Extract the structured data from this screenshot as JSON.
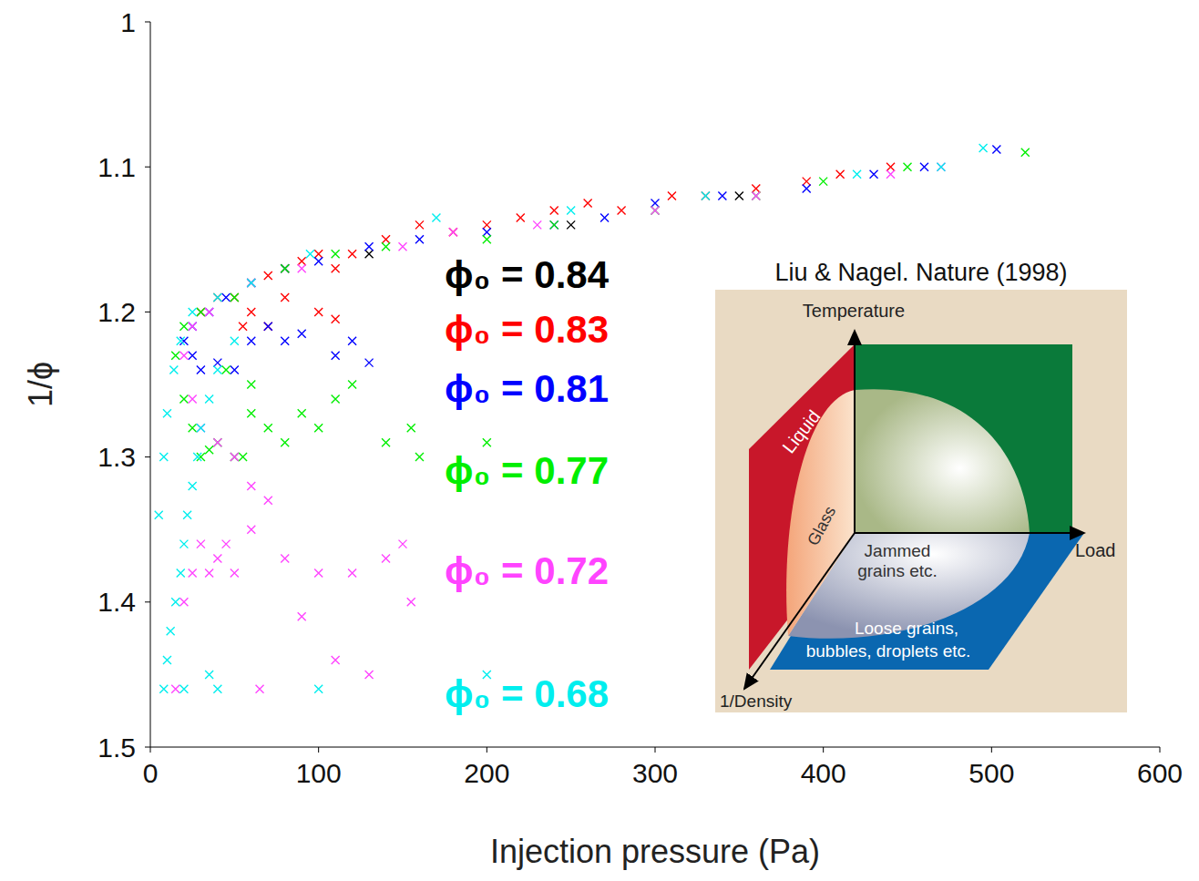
{
  "chart_data": {
    "type": "scatter",
    "x_label": "Injection pressure (Pa)",
    "y_label": "1/ϕ",
    "xlim": [
      0,
      600
    ],
    "xticks": [
      0,
      100,
      200,
      300,
      400,
      500,
      600
    ],
    "ylim": [
      1,
      1.5
    ],
    "yticks": [
      1,
      1.1,
      1.2,
      1.3,
      1.4,
      1.5
    ],
    "grid": false,
    "marker": "x",
    "series": [
      {
        "name": "ϕ₀ = 0.84",
        "color": "#000000",
        "x": [
          130,
          250,
          350
        ],
        "y": [
          1.16,
          1.14,
          1.12
        ]
      },
      {
        "name": "ϕ₀ = 0.83",
        "color": "#ff0000",
        "x": [
          30,
          40,
          50,
          60,
          70,
          80,
          90,
          100,
          110,
          120,
          140,
          160,
          180,
          200,
          220,
          240,
          260,
          280,
          310,
          330,
          360,
          390,
          410,
          440,
          80,
          100,
          110,
          70,
          60,
          55
        ],
        "y": [
          1.2,
          1.19,
          1.19,
          1.18,
          1.175,
          1.17,
          1.165,
          1.16,
          1.17,
          1.16,
          1.15,
          1.14,
          1.145,
          1.14,
          1.135,
          1.13,
          1.125,
          1.13,
          1.12,
          1.12,
          1.115,
          1.11,
          1.105,
          1.1,
          1.19,
          1.2,
          1.205,
          1.21,
          1.2,
          1.21
        ]
      },
      {
        "name": "ϕ₀ = 0.81",
        "color": "#0000ff",
        "x": [
          20,
          25,
          30,
          40,
          50,
          60,
          70,
          80,
          110,
          120,
          130,
          35,
          45,
          60,
          80,
          100,
          130,
          160,
          200,
          240,
          270,
          300,
          340,
          390,
          430,
          460,
          503,
          25,
          90
        ],
        "y": [
          1.22,
          1.23,
          1.24,
          1.235,
          1.24,
          1.22,
          1.21,
          1.22,
          1.23,
          1.22,
          1.235,
          1.2,
          1.19,
          1.18,
          1.17,
          1.165,
          1.155,
          1.15,
          1.145,
          1.14,
          1.135,
          1.125,
          1.12,
          1.115,
          1.105,
          1.1,
          1.088,
          1.21,
          1.215
        ]
      },
      {
        "name": "ϕ₀ = 0.77",
        "color": "#00ee00",
        "x": [
          20,
          25,
          30,
          35,
          40,
          50,
          55,
          60,
          70,
          80,
          90,
          100,
          110,
          120,
          140,
          155,
          160,
          200,
          15,
          20,
          30,
          50,
          80,
          110,
          140,
          200,
          240,
          300,
          360,
          400,
          450,
          520,
          60,
          45
        ],
        "y": [
          1.26,
          1.28,
          1.3,
          1.295,
          1.29,
          1.3,
          1.3,
          1.27,
          1.28,
          1.29,
          1.27,
          1.28,
          1.26,
          1.25,
          1.29,
          1.28,
          1.3,
          1.29,
          1.23,
          1.21,
          1.2,
          1.19,
          1.17,
          1.16,
          1.155,
          1.15,
          1.14,
          1.13,
          1.12,
          1.11,
          1.1,
          1.09,
          1.25,
          1.24
        ]
      },
      {
        "name": "ϕ₀ = 0.72",
        "color": "#ff44ff",
        "x": [
          15,
          20,
          25,
          30,
          35,
          40,
          45,
          50,
          60,
          70,
          80,
          100,
          120,
          140,
          150,
          130,
          110,
          90,
          60,
          50,
          40,
          30,
          25,
          20,
          25,
          35,
          60,
          90,
          150,
          180,
          230,
          300,
          360,
          440,
          470,
          155,
          65
        ],
        "y": [
          1.46,
          1.4,
          1.38,
          1.36,
          1.38,
          1.37,
          1.36,
          1.38,
          1.35,
          1.33,
          1.37,
          1.38,
          1.38,
          1.37,
          1.36,
          1.45,
          1.44,
          1.41,
          1.32,
          1.3,
          1.29,
          1.28,
          1.26,
          1.23,
          1.21,
          1.2,
          1.18,
          1.17,
          1.155,
          1.145,
          1.14,
          1.13,
          1.12,
          1.105,
          1.1,
          1.4,
          1.46
        ]
      },
      {
        "name": "ϕ₀ = 0.68",
        "color": "#00eeee",
        "x": [
          8,
          10,
          12,
          15,
          18,
          20,
          22,
          25,
          28,
          30,
          35,
          40,
          50,
          20,
          35,
          40,
          5,
          8,
          10,
          14,
          18,
          25,
          40,
          60,
          95,
          170,
          250,
          330,
          420,
          470,
          495,
          100,
          200
        ],
        "y": [
          1.46,
          1.44,
          1.42,
          1.4,
          1.38,
          1.36,
          1.34,
          1.32,
          1.3,
          1.28,
          1.26,
          1.24,
          1.22,
          1.46,
          1.45,
          1.46,
          1.34,
          1.3,
          1.27,
          1.24,
          1.22,
          1.2,
          1.19,
          1.18,
          1.16,
          1.135,
          1.13,
          1.12,
          1.105,
          1.1,
          1.087,
          1.46,
          1.45
        ]
      }
    ]
  },
  "inset": {
    "title": "Liu & Nagel. Nature (1998)",
    "axes": {
      "vertical": "Temperature",
      "horizontal": "Load",
      "depth": "1/Density"
    },
    "regions": {
      "liquid": "Liquid",
      "glass": "Glass",
      "jammed": "Jammed grains etc.",
      "loose": "Loose grains, bubbles, droplets etc."
    }
  }
}
